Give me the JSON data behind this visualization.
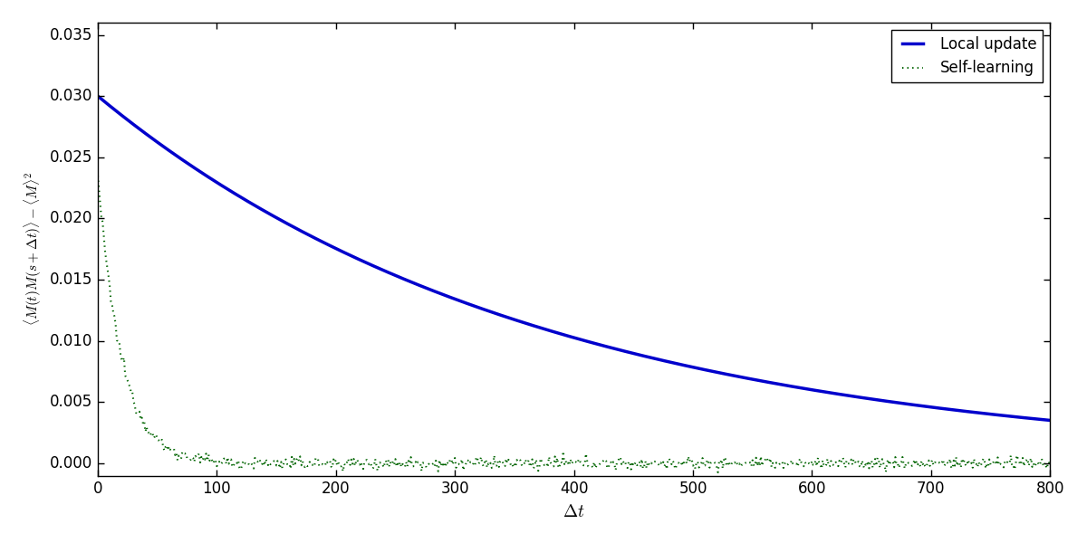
{
  "xlabel": "$\\Delta t$",
  "ylabel": "$\\langle M(t)M(s+\\Delta t)\\rangle - \\langle M\\rangle^2$",
  "xlim": [
    0,
    800
  ],
  "ylim": [
    -0.001,
    0.036
  ],
  "yticks": [
    0.0,
    0.005,
    0.01,
    0.015,
    0.02,
    0.025,
    0.03,
    0.035
  ],
  "xticks": [
    0,
    100,
    200,
    300,
    400,
    500,
    600,
    700,
    800
  ],
  "blue_color": "#0000cc",
  "green_color": "#006400",
  "blue_tau": 373,
  "blue_A": 0.03,
  "green_tau": 20,
  "green_A": 0.0235,
  "green_noise_scale": 0.00025,
  "n_points": 800,
  "legend_labels": [
    "Local update",
    "Self-learning"
  ],
  "legend_loc": "upper right",
  "figsize": [
    12.0,
    6.0
  ],
  "dpi": 100
}
